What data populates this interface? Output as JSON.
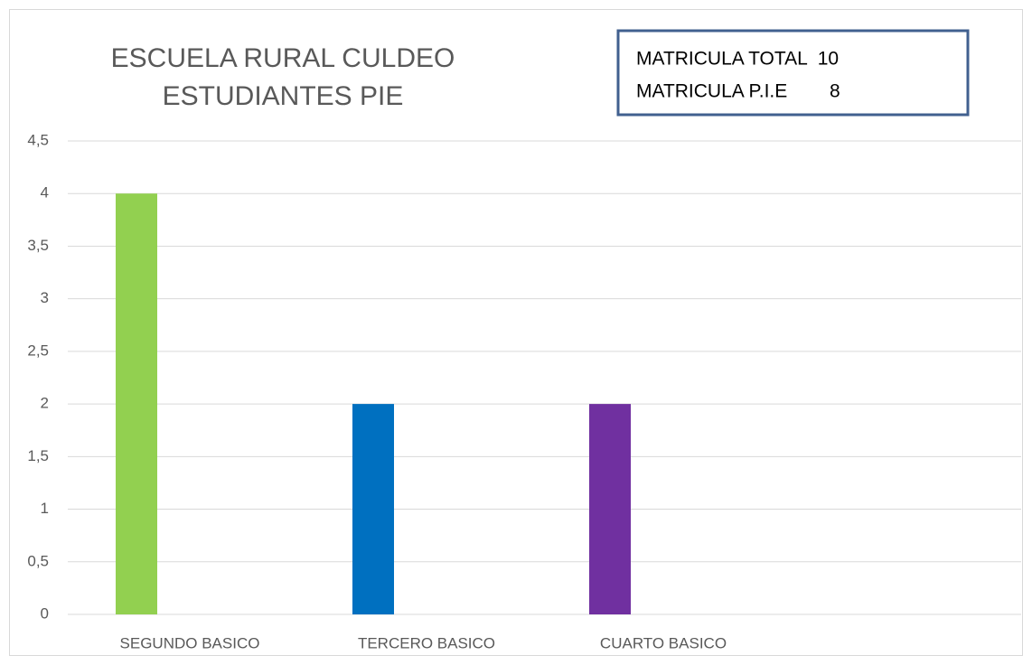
{
  "chart_data": {
    "type": "bar",
    "title": [
      "ESCUELA RURAL CULDEO",
      "ESTUDIANTES PIE"
    ],
    "annotations": [
      "MATRICULA TOTAL  10",
      "MATRICULA P.I.E        8"
    ],
    "categories": [
      "SEGUNDO BASICO",
      "TERCERO BASICO",
      "CUARTO BASICO"
    ],
    "values": [
      4,
      2,
      2
    ],
    "colors": [
      "#92d050",
      "#0070c0",
      "#7030a0"
    ],
    "ylim": [
      0,
      4.5
    ],
    "yticks": [
      0,
      {
        "value": 0.5,
        "label": "0,5"
      },
      1,
      {
        "value": 1.5,
        "label": "1,5"
      },
      2,
      {
        "value": 2.5,
        "label": "2,5"
      },
      3,
      {
        "value": 3.5,
        "label": "3,5"
      },
      4,
      {
        "value": 4.5,
        "label": "4,5"
      }
    ],
    "grid": true
  }
}
